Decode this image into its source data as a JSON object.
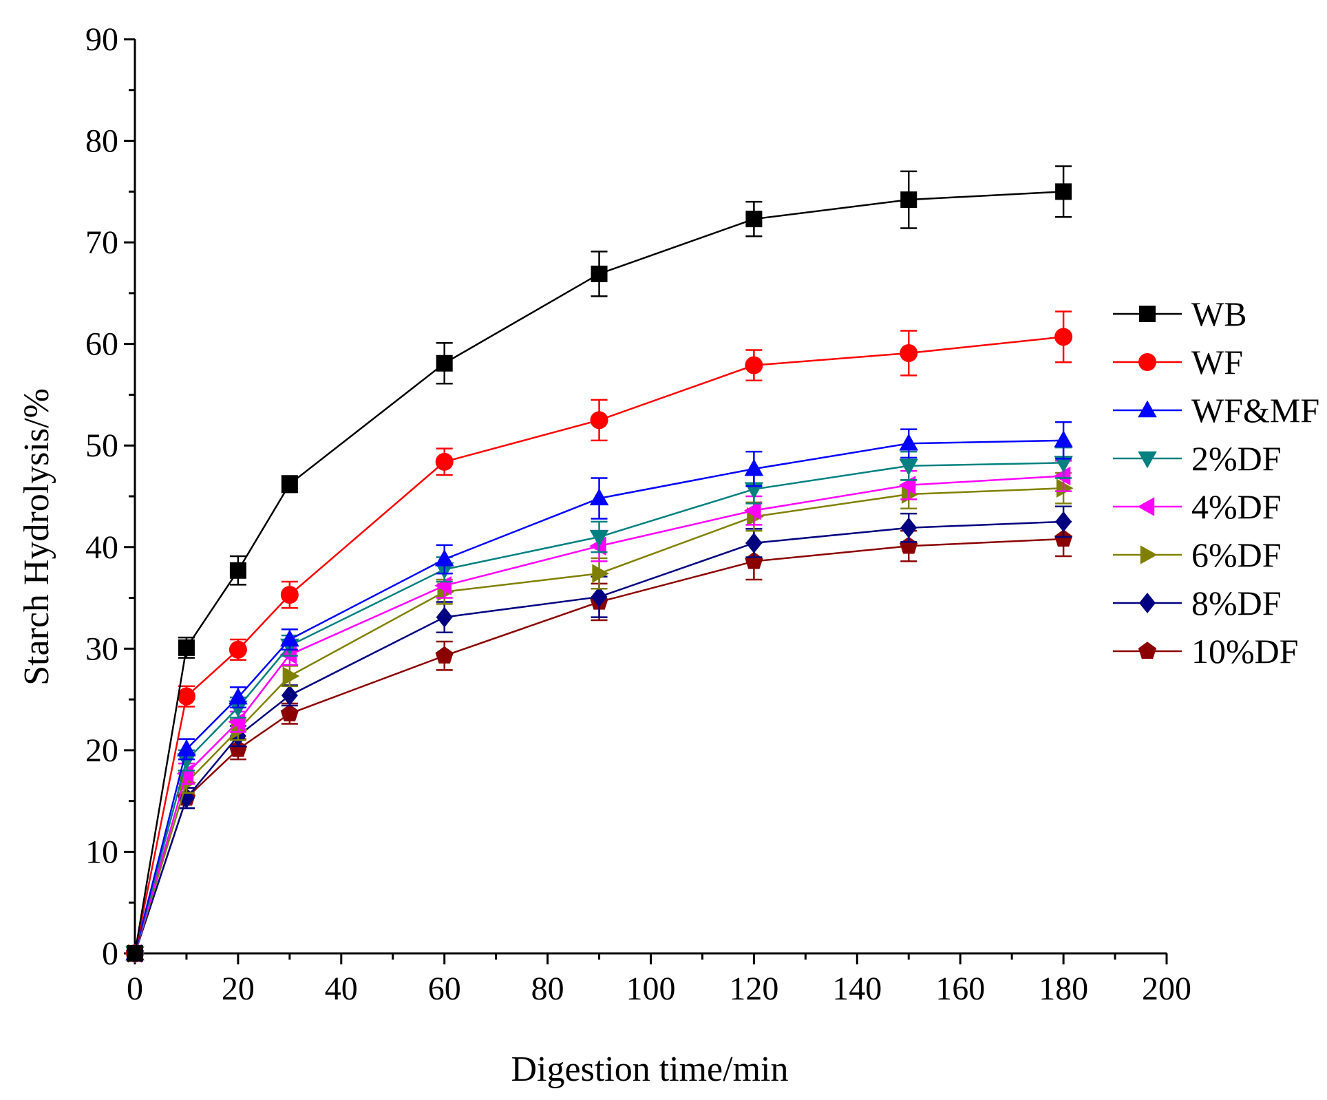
{
  "chart_data": {
    "type": "line",
    "title": "",
    "xlabel": "Digestion time/min",
    "ylabel": "Starch Hydrolysis/%",
    "xlim": [
      0,
      200
    ],
    "ylim": [
      0,
      90
    ],
    "xticks": [
      0,
      20,
      40,
      60,
      80,
      100,
      120,
      140,
      160,
      180,
      200
    ],
    "yticks": [
      0,
      10,
      20,
      30,
      40,
      50,
      60,
      70,
      80,
      90
    ],
    "grid": false,
    "legend_position": "right",
    "x": [
      0,
      10,
      20,
      30,
      60,
      90,
      120,
      150,
      180
    ],
    "series": [
      {
        "name": "WB",
        "color": "#000000",
        "marker": "square",
        "values": [
          0,
          30.1,
          37.7,
          46.2,
          58.1,
          66.9,
          72.3,
          74.2,
          75.0
        ],
        "errors": [
          0,
          1.0,
          1.4,
          0.8,
          2.0,
          2.2,
          1.7,
          2.8,
          2.5
        ]
      },
      {
        "name": "WF",
        "color": "#ff0000",
        "marker": "circle",
        "values": [
          0,
          25.3,
          29.9,
          35.3,
          48.4,
          52.5,
          57.9,
          59.1,
          60.7
        ],
        "errors": [
          0,
          1.0,
          1.0,
          1.3,
          1.3,
          2.0,
          1.5,
          2.2,
          2.5
        ]
      },
      {
        "name": "WF&MF",
        "color": "#0000ff",
        "marker": "triangle-up",
        "values": [
          0,
          20.1,
          25.2,
          30.9,
          38.8,
          44.8,
          47.7,
          50.2,
          50.5
        ],
        "errors": [
          0,
          1.0,
          1.0,
          1.0,
          1.4,
          2.0,
          1.7,
          1.4,
          1.8
        ]
      },
      {
        "name": "2%DF",
        "color": "#008080",
        "marker": "triangle-down",
        "values": [
          0,
          19.0,
          24.2,
          30.3,
          37.8,
          41.0,
          45.7,
          48.0,
          48.3
        ],
        "errors": [
          0,
          1.0,
          1.0,
          1.0,
          1.2,
          1.5,
          1.4,
          1.4,
          1.5
        ]
      },
      {
        "name": "4%DF",
        "color": "#ff00ff",
        "marker": "triangle-left",
        "values": [
          0,
          17.7,
          22.8,
          29.4,
          36.2,
          40.1,
          43.6,
          46.1,
          47.0
        ],
        "errors": [
          0,
          1.0,
          1.0,
          1.0,
          1.2,
          1.5,
          1.4,
          1.4,
          1.5
        ]
      },
      {
        "name": "6%DF",
        "color": "#808000",
        "marker": "triangle-right",
        "values": [
          0,
          16.8,
          22.0,
          27.3,
          35.6,
          37.4,
          43.0,
          45.2,
          45.8
        ],
        "errors": [
          0,
          1.0,
          1.0,
          1.0,
          1.2,
          1.5,
          1.4,
          1.4,
          1.5
        ]
      },
      {
        "name": "8%DF",
        "color": "#000080",
        "marker": "diamond",
        "values": [
          0,
          15.3,
          21.4,
          25.4,
          33.1,
          35.1,
          40.4,
          41.9,
          42.5
        ],
        "errors": [
          0,
          1.0,
          1.0,
          1.0,
          1.5,
          2.0,
          1.4,
          1.4,
          1.5
        ]
      },
      {
        "name": "10%DF",
        "color": "#8b0000",
        "marker": "pentagon",
        "values": [
          0,
          15.3,
          20.1,
          23.6,
          29.3,
          34.6,
          38.6,
          40.1,
          40.8
        ],
        "errors": [
          0,
          1.0,
          1.0,
          1.0,
          1.4,
          1.8,
          1.8,
          1.5,
          1.7
        ]
      }
    ]
  }
}
